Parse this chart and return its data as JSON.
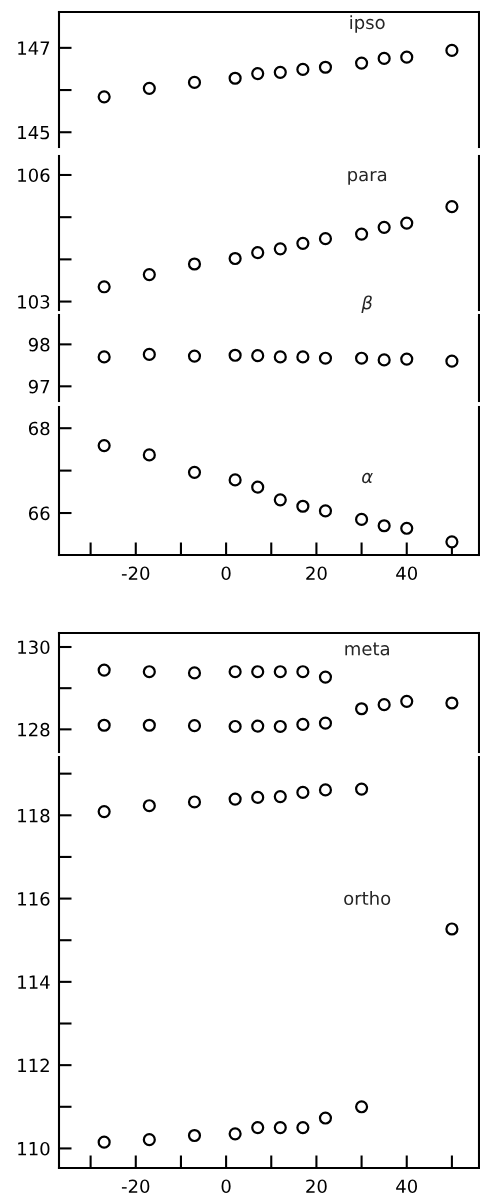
{
  "chart_data": [
    {
      "type": "scatter",
      "marker": "circle",
      "tick_labels": "y",
      "xlim": [
        -37,
        56
      ],
      "ylim": [
        144.65,
        147.85
      ],
      "yticks": [
        145,
        {
          "value": 146,
          "label": null
        },
        147
      ],
      "series": [
        {
          "name": "ipso",
          "color": "#000000",
          "x": [
            -27,
            -17,
            -7,
            2,
            7,
            12,
            17,
            22,
            30,
            35,
            40,
            50
          ],
          "values": [
            145.84,
            146.04,
            146.18,
            146.28,
            146.39,
            146.42,
            146.49,
            146.54,
            146.64,
            146.75,
            146.78,
            146.94
          ]
        }
      ]
    },
    {
      "type": "scatter",
      "marker": "circle",
      "tick_labels": "y",
      "xlim": [
        -37,
        56
      ],
      "ylim": [
        102.8,
        106.45
      ],
      "yticks": [
        103,
        {
          "value": 104,
          "label": null
        },
        {
          "value": 105,
          "label": null
        },
        106
      ],
      "series": [
        {
          "name": "para",
          "color": "#000000",
          "x": [
            -27,
            -17,
            -7,
            2,
            7,
            12,
            17,
            22,
            30,
            35,
            40,
            50
          ],
          "values": [
            103.35,
            103.64,
            103.89,
            104.02,
            104.16,
            104.25,
            104.38,
            104.49,
            104.6,
            104.76,
            104.86,
            105.25
          ]
        }
      ]
    },
    {
      "type": "scatter",
      "marker": "circle",
      "tick_labels": "y",
      "xlim": [
        -37,
        56
      ],
      "ylim": [
        96.65,
        98.7
      ],
      "yticks": [
        97,
        98
      ],
      "series": [
        {
          "name": "β",
          "color": "#000000",
          "x": [
            -27,
            -17,
            -7,
            2,
            7,
            12,
            17,
            22,
            30,
            35,
            40,
            50
          ],
          "values": [
            97.7,
            97.76,
            97.72,
            97.74,
            97.73,
            97.7,
            97.7,
            97.67,
            97.67,
            97.63,
            97.65,
            97.6
          ]
        }
      ]
    },
    {
      "type": "scatter",
      "marker": "circle",
      "xlim": [
        -37,
        56
      ],
      "xticks": [
        {
          "value": -30,
          "label": null
        },
        -20,
        {
          "value": -10,
          "label": null
        },
        0,
        {
          "value": 10,
          "label": null
        },
        20,
        {
          "value": 30,
          "label": null
        },
        40,
        {
          "value": 50,
          "label": null
        }
      ],
      "ylim": [
        65.01,
        68.5
      ],
      "yticks": [
        66,
        {
          "value": 67,
          "label": null
        },
        68
      ],
      "series": [
        {
          "name": "α",
          "color": "#000000",
          "x": [
            -27,
            -17,
            -7,
            2,
            7,
            12,
            17,
            22,
            30,
            35,
            40,
            50
          ],
          "values": [
            67.59,
            67.37,
            66.96,
            66.78,
            66.61,
            66.31,
            66.16,
            66.05,
            65.85,
            65.7,
            65.64,
            65.32
          ]
        }
      ]
    },
    {
      "type": "scatter",
      "marker": "circle",
      "tick_labels": "y",
      "xlim": [
        -37,
        56
      ],
      "ylim": [
        127.45,
        130.34
      ],
      "yticks": [
        128,
        {
          "value": 129,
          "label": null
        },
        130
      ],
      "series": [
        {
          "color": "#000000",
          "x": [
            -27,
            -17,
            -7,
            2,
            7,
            12,
            17,
            22
          ],
          "values": [
            129.44,
            129.4,
            129.37,
            129.4,
            129.4,
            129.4,
            129.4,
            129.27
          ]
        },
        {
          "color": "#000000",
          "x": [
            -27,
            -17,
            -7,
            2,
            7,
            12,
            17,
            22
          ],
          "values": [
            128.1,
            128.1,
            128.09,
            128.07,
            128.08,
            128.07,
            128.12,
            128.15
          ]
        },
        {
          "name": "meta",
          "color": "#000000",
          "x": [
            30,
            35,
            40,
            50
          ],
          "values": [
            128.5,
            128.6,
            128.68,
            128.64
          ]
        }
      ]
    },
    {
      "type": "scatter",
      "marker": "circle",
      "xlim": [
        -37,
        56
      ],
      "xticks": [
        {
          "value": -30,
          "label": null
        },
        -20,
        {
          "value": -10,
          "label": null
        },
        0,
        {
          "value": 10,
          "label": null
        },
        20,
        {
          "value": 30,
          "label": null
        },
        40,
        {
          "value": 50,
          "label": null
        }
      ],
      "ylim": [
        109.53,
        119.4
      ],
      "yticks": [
        110,
        {
          "value": 111,
          "label": null
        },
        112,
        {
          "value": 113,
          "label": null
        },
        114,
        {
          "value": 115,
          "label": null
        },
        116,
        {
          "value": 117,
          "label": null
        },
        118,
        {
          "value": 119,
          "label": null
        }
      ],
      "series": [
        {
          "color": "#000000",
          "x": [
            -27,
            -17,
            -7,
            2,
            7,
            12,
            17,
            22,
            30
          ],
          "values": [
            118.09,
            118.23,
            118.32,
            118.39,
            118.43,
            118.45,
            118.55,
            118.61,
            118.63
          ]
        },
        {
          "color": "#000000",
          "x": [
            -27,
            -17,
            -7,
            2,
            7,
            12,
            17,
            22,
            30
          ],
          "values": [
            110.15,
            110.21,
            110.31,
            110.35,
            110.5,
            110.5,
            110.5,
            110.73,
            111.0
          ]
        },
        {
          "name": "ortho",
          "color": "#000000",
          "x": [
            50
          ],
          "values": [
            115.27
          ]
        }
      ]
    }
  ]
}
